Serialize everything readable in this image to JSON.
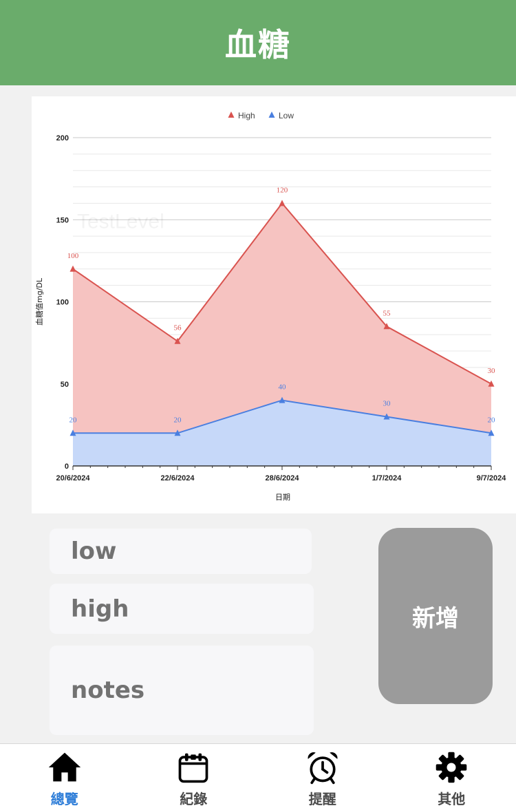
{
  "header": {
    "title": "血糖"
  },
  "chart_data": {
    "type": "area",
    "x": [
      "20/6/2024",
      "22/6/2024",
      "28/6/2024",
      "1/7/2024",
      "9/7/2024"
    ],
    "series": [
      {
        "name": "High",
        "values": [
          120,
          76,
          160,
          85,
          50
        ],
        "labels": [
          "100",
          "56",
          "120",
          "55",
          "30"
        ],
        "color": "#d9534f",
        "fill": "#f6c3c1"
      },
      {
        "name": "Low",
        "values": [
          20,
          20,
          40,
          30,
          20
        ],
        "labels": [
          "20",
          "20",
          "40",
          "30",
          "20"
        ],
        "color": "#4a7fe0",
        "fill": "#c6d8f9"
      }
    ],
    "ylim": [
      0,
      200
    ],
    "yticks": [
      "0",
      "50",
      "100",
      "150",
      "200"
    ],
    "ylabel": "血糖值mg/DL",
    "xlabel": "日期",
    "watermark": "TestLevel",
    "legend": "top-center",
    "grid": true
  },
  "form": {
    "low_placeholder": "low",
    "high_placeholder": "high",
    "notes_placeholder": "notes",
    "add_label": "新增"
  },
  "tabs": [
    {
      "label": "總覽",
      "icon": "home-icon",
      "active": true
    },
    {
      "label": "紀錄",
      "icon": "calendar-icon",
      "active": false
    },
    {
      "label": "提醒",
      "icon": "alarm-clock-icon",
      "active": false
    },
    {
      "label": "其他",
      "icon": "gear-icon",
      "active": false
    }
  ],
  "colors": {
    "header": "#6aac6b",
    "active_tab": "#2f7ed8",
    "add_button": "#9b9b9b"
  }
}
